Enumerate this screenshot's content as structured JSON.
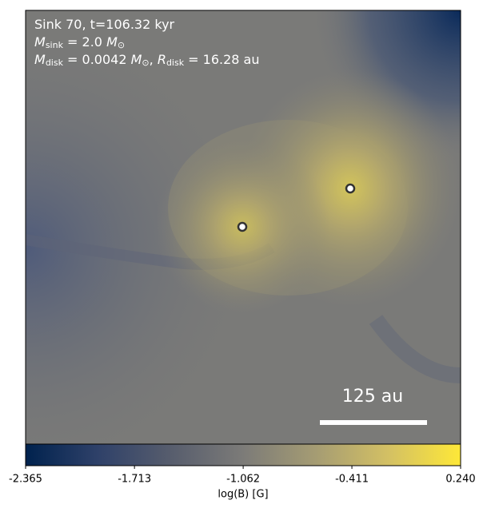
{
  "chart_data": {
    "type": "image",
    "annotation_lines": [
      [
        {
          "text": "Sink 70, t=106.32 kyr",
          "style": "normal"
        }
      ],
      [
        {
          "text": "M",
          "style": "italic"
        },
        {
          "text": "sink",
          "style": "sub"
        },
        {
          "text": " = 2.0 ",
          "style": "normal"
        },
        {
          "text": "M",
          "style": "italic"
        },
        {
          "text": "⊙",
          "style": "sub"
        }
      ],
      [
        {
          "text": "M",
          "style": "italic"
        },
        {
          "text": "disk",
          "style": "sub"
        },
        {
          "text": " = 0.0042 ",
          "style": "normal"
        },
        {
          "text": "M",
          "style": "italic"
        },
        {
          "text": "⊙",
          "style": "sub"
        },
        {
          "text": ", ",
          "style": "normal"
        },
        {
          "text": "R",
          "style": "italic"
        },
        {
          "text": "disk",
          "style": "sub"
        },
        {
          "text": " = 16.28 au",
          "style": "normal"
        }
      ]
    ],
    "scale_bar_label": "125 au",
    "colorbar_label": "log(B) [G]",
    "colorbar_lim": [
      -2.365,
      0.24
    ],
    "colorbar_ticks": [
      -2.365,
      -1.713,
      -1.062,
      -0.411,
      {
        "value": 0.24,
        "label": "0.240"
      }
    ],
    "colormap": [
      "#00224e",
      "#2f4169",
      "#575d6d",
      "#7c7b78",
      "#a59c73",
      "#d3c064",
      "#fee838"
    ]
  }
}
